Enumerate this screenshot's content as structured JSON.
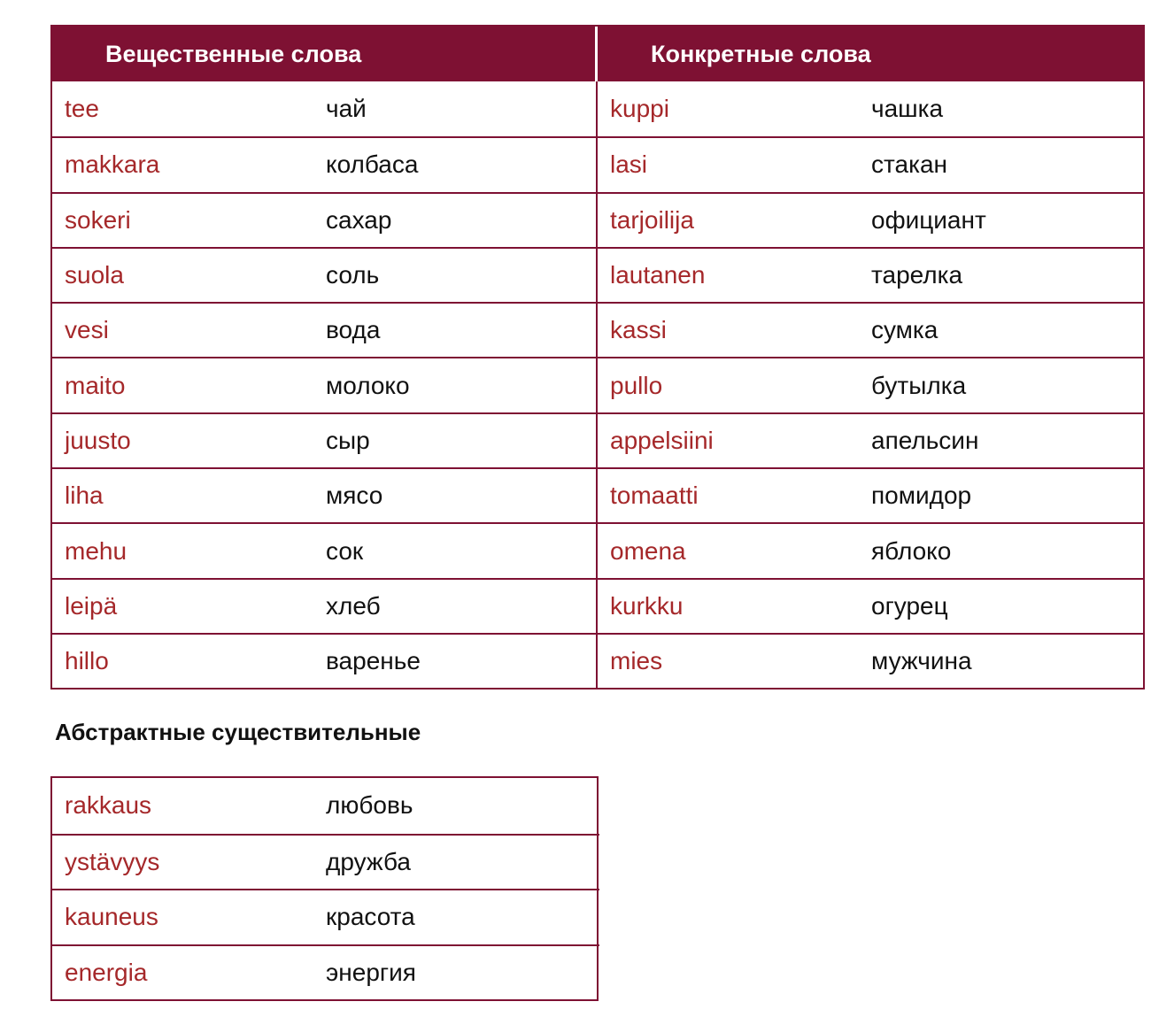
{
  "headers": {
    "left": "Вещественные слова",
    "right": "Конкретные слова"
  },
  "material_words": [
    {
      "fi": "tee",
      "ru": "чай"
    },
    {
      "fi": "makkara",
      "ru": "колбаса"
    },
    {
      "fi": "sokeri",
      "ru": "сахар"
    },
    {
      "fi": "suola",
      "ru": "соль"
    },
    {
      "fi": "vesi",
      "ru": "вода"
    },
    {
      "fi": "maito",
      "ru": "молоко"
    },
    {
      "fi": "juusto",
      "ru": "сыр"
    },
    {
      "fi": "liha",
      "ru": "мясо"
    },
    {
      "fi": "mehu",
      "ru": "сок"
    },
    {
      "fi": "leipä",
      "ru": "хлеб"
    },
    {
      "fi": "hillo",
      "ru": "варенье"
    }
  ],
  "concrete_words": [
    {
      "fi": "kuppi",
      "ru": "чашка"
    },
    {
      "fi": "lasi",
      "ru": "стакан"
    },
    {
      "fi": "tarjoilija",
      "ru": "официант"
    },
    {
      "fi": "lautanen",
      "ru": "тарелка"
    },
    {
      "fi": "kassi",
      "ru": "сумка"
    },
    {
      "fi": "pullo",
      "ru": "бутылка"
    },
    {
      "fi": "appelsiini",
      "ru": "апельсин"
    },
    {
      "fi": "tomaatti",
      "ru": "помидор"
    },
    {
      "fi": "omena",
      "ru": "яблоко"
    },
    {
      "fi": "kurkku",
      "ru": "огурец"
    },
    {
      "fi": "mies",
      "ru": "мужчина"
    }
  ],
  "abstract_title": "Абстрактные существительные",
  "abstract_words": [
    {
      "fi": "rakkaus",
      "ru": "любовь"
    },
    {
      "fi": "ystävyys",
      "ru": "дружба"
    },
    {
      "fi": "kauneus",
      "ru": "красота"
    },
    {
      "fi": "energia",
      "ru": "энергия"
    }
  ],
  "colors": {
    "header_bg": "#7e1133",
    "finnish_text": "#a5282a",
    "russian_text": "#111111"
  }
}
